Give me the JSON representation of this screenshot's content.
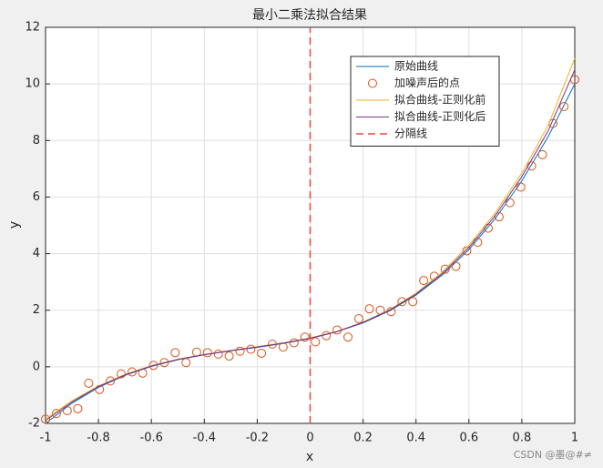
{
  "chart_data": {
    "type": "line",
    "title": "最小二乘法拟合结果",
    "xlabel": "x",
    "ylabel": "y",
    "xlim": [
      -1,
      1
    ],
    "ylim": [
      -2,
      12
    ],
    "xticks": [
      -1,
      -0.8,
      -0.6,
      -0.4,
      -0.2,
      0,
      0.2,
      0.4,
      0.6,
      0.8,
      1
    ],
    "yticks": [
      -2,
      0,
      2,
      4,
      6,
      8,
      10,
      12
    ],
    "grid": true,
    "legend": "northeast",
    "series": [
      {
        "name": "原始曲线",
        "color": "#0072bd",
        "style": "line",
        "x": [
          -1,
          -0.9,
          -0.8,
          -0.7,
          -0.6,
          -0.5,
          -0.4,
          -0.3,
          -0.2,
          -0.1,
          0,
          0.1,
          0.2,
          0.3,
          0.4,
          0.5,
          0.6,
          0.7,
          0.8,
          0.9,
          1
        ],
        "values": [
          -2,
          -1.286,
          -0.728,
          -0.302,
          0.016,
          0.25,
          0.424,
          0.562,
          0.688,
          0.826,
          1,
          1.234,
          1.552,
          1.978,
          2.536,
          3.25,
          4.144,
          5.242,
          6.568,
          8.146,
          10
        ]
      },
      {
        "name": "加噪声后的点",
        "color": "#d95319",
        "style": "marker",
        "x": [
          -1,
          -0.959,
          -0.918,
          -0.878,
          -0.837,
          -0.796,
          -0.755,
          -0.714,
          -0.673,
          -0.633,
          -0.592,
          -0.551,
          -0.51,
          -0.469,
          -0.429,
          -0.388,
          -0.347,
          -0.306,
          -0.265,
          -0.224,
          -0.184,
          -0.143,
          -0.102,
          -0.061,
          -0.02,
          0.02,
          0.061,
          0.102,
          0.143,
          0.184,
          0.224,
          0.265,
          0.306,
          0.347,
          0.388,
          0.429,
          0.469,
          0.51,
          0.551,
          0.592,
          0.633,
          0.673,
          0.714,
          0.755,
          0.796,
          0.837,
          0.878,
          0.918,
          0.959,
          1
        ],
        "values": [
          -1.85,
          -1.65,
          -1.55,
          -1.48,
          -0.58,
          -0.8,
          -0.5,
          -0.25,
          -0.18,
          -0.22,
          0.05,
          0.15,
          0.5,
          0.15,
          0.52,
          0.5,
          0.45,
          0.38,
          0.55,
          0.62,
          0.48,
          0.8,
          0.7,
          0.85,
          1.05,
          0.88,
          1.1,
          1.3,
          1.05,
          1.7,
          2.05,
          2.0,
          1.95,
          2.3,
          2.3,
          3.05,
          3.2,
          3.45,
          3.55,
          4.1,
          4.4,
          4.9,
          5.3,
          5.8,
          6.35,
          7.1,
          7.5,
          8.6,
          9.2,
          10.15
        ]
      },
      {
        "name": "拟合曲线-正则化前",
        "color": "#edb120",
        "style": "line",
        "x": [
          -1,
          -0.9,
          -0.8,
          -0.7,
          -0.6,
          -0.5,
          -0.4,
          -0.3,
          -0.2,
          -0.1,
          0,
          0.1,
          0.2,
          0.3,
          0.4,
          0.5,
          0.6,
          0.7,
          0.8,
          0.9,
          1
        ],
        "values": [
          -1.85,
          -1.2,
          -0.68,
          -0.27,
          0.04,
          0.27,
          0.44,
          0.58,
          0.71,
          0.85,
          1.02,
          1.25,
          1.58,
          2.02,
          2.6,
          3.35,
          4.3,
          5.45,
          6.85,
          8.55,
          10.9
        ]
      },
      {
        "name": "拟合曲线-正则化后",
        "color": "#7e2f8e",
        "style": "line",
        "x": [
          -1,
          -0.9,
          -0.8,
          -0.7,
          -0.6,
          -0.5,
          -0.4,
          -0.3,
          -0.2,
          -0.1,
          0,
          0.1,
          0.2,
          0.3,
          0.4,
          0.5,
          0.6,
          0.7,
          0.8,
          0.9,
          1
        ],
        "values": [
          -1.9,
          -1.24,
          -0.7,
          -0.29,
          0.03,
          0.26,
          0.43,
          0.57,
          0.7,
          0.84,
          1.01,
          1.24,
          1.57,
          2.0,
          2.57,
          3.3,
          4.22,
          5.35,
          6.72,
          8.35,
          10.5
        ]
      },
      {
        "name": "分隔线",
        "color": "#f0433a",
        "style": "dash",
        "x": [
          0,
          0
        ],
        "values": [
          -2,
          12
        ]
      }
    ],
    "watermark": "CSDN @墨@#≠"
  }
}
